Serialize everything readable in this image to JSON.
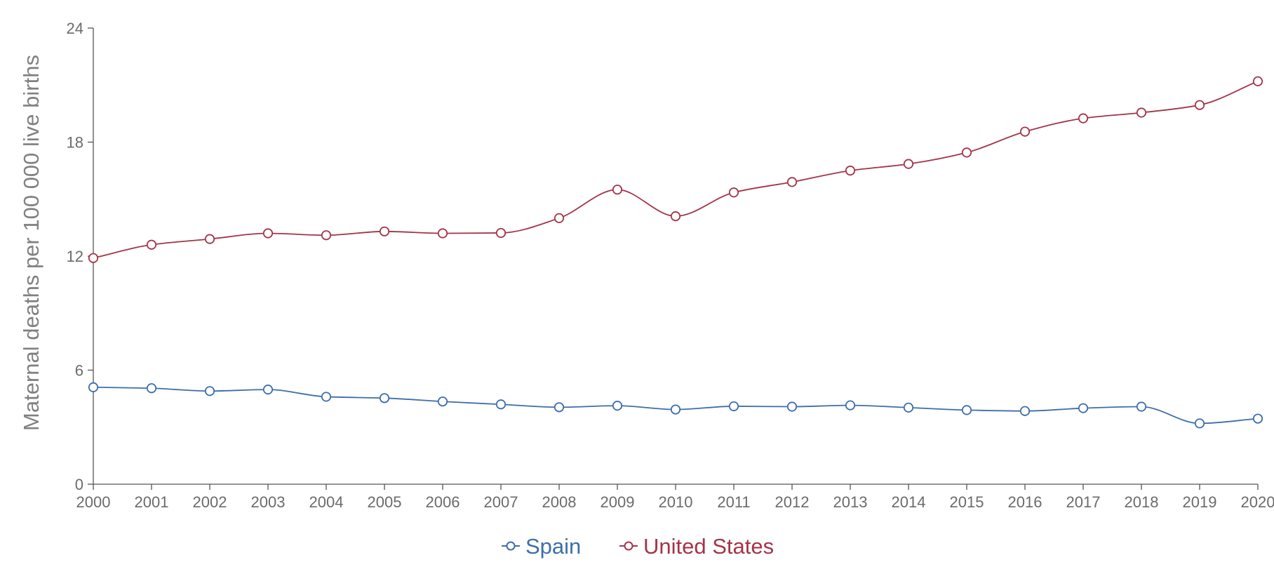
{
  "chart_data": {
    "type": "line",
    "title": "",
    "xlabel": "",
    "ylabel": "Maternal deaths per 100 000 live births",
    "x": [
      "2000",
      "2001",
      "2002",
      "2003",
      "2004",
      "2005",
      "2006",
      "2007",
      "2008",
      "2009",
      "2010",
      "2011",
      "2012",
      "2013",
      "2014",
      "2015",
      "2016",
      "2017",
      "2018",
      "2019",
      "2020"
    ],
    "ylim": [
      0,
      24
    ],
    "yticks": [
      "0",
      "6",
      "12",
      "18",
      "24"
    ],
    "grid": false,
    "legend_position": "bottom-center",
    "series": [
      {
        "name": "Spain",
        "color": "#3d6eab",
        "values": [
          5.1,
          5.05,
          4.9,
          4.98,
          4.6,
          4.53,
          4.35,
          4.2,
          4.05,
          4.13,
          3.93,
          4.1,
          4.08,
          4.15,
          4.03,
          3.9,
          3.85,
          4.0,
          4.08,
          3.2,
          3.45
        ]
      },
      {
        "name": "United States",
        "color": "#a33449",
        "values": [
          11.9,
          12.6,
          12.9,
          13.2,
          13.1,
          13.3,
          13.2,
          13.22,
          14.0,
          15.5,
          14.1,
          15.35,
          15.9,
          16.5,
          16.85,
          17.45,
          18.55,
          19.25,
          19.55,
          19.95,
          21.2
        ]
      }
    ]
  }
}
